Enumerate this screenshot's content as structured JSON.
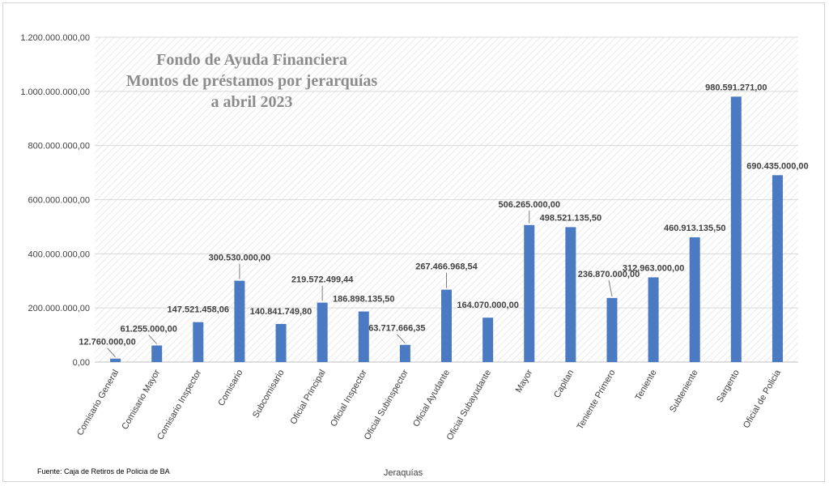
{
  "chart_data": {
    "type": "bar",
    "title_lines": [
      "Fondo de Ayuda Financiera",
      "Montos de préstamos por jerarquías",
      "a abril 2023"
    ],
    "xlabel": "Jeraquías",
    "ylabel": "",
    "ylim": [
      0,
      1200000000
    ],
    "ytick_values": [
      0,
      200000000,
      400000000,
      600000000,
      800000000,
      1000000000,
      1200000000
    ],
    "ytick_labels": [
      "0,00",
      "200.000.000,00",
      "400.000.000,00",
      "600.000.000,00",
      "800.000.000,00",
      "1.000.000.000,00",
      "1.200.000.000,00"
    ],
    "grid": true,
    "legend": "none",
    "bar_color": "#4a7bc2",
    "categories": [
      "Comisario General",
      "Comisario Mayor",
      "Comisario Inspector",
      "Comisario",
      "Subcomisario",
      "Oficial Principal",
      "Oficial Inspector",
      "Oficial Subinspector",
      "Oficial Ayudante",
      "Oficial Subayudante",
      "Mayor",
      "Capitan",
      "Teniente Primero",
      "Teniente",
      "Subteniente",
      "Sargento",
      "Oficial de Policia"
    ],
    "values": [
      12760000,
      61255000,
      147521458.06,
      300530000,
      140841749.8,
      219572499.44,
      186898135.5,
      63717666.35,
      267466968.54,
      164070000,
      506265000,
      498521135.5,
      236870000,
      312963000,
      460913135.5,
      980591271,
      690435000
    ],
    "data_labels": [
      "12.760.000,00",
      "61.255.000,00",
      "147.521.458,06",
      "300.530.000,00",
      "140.841.749,80",
      "219.572.499,44",
      "186.898.135,50",
      "63.717.666,35",
      "267.466.968,54",
      "164.070.000,00",
      "506.265.000,00",
      "498.521.135,50",
      "236.870.000,00",
      "312.963.000,00",
      "460.913.135,50",
      "980.591.271,00",
      "690.435.000,00"
    ]
  },
  "footer": {
    "source": "Fuente: Caja de Retiros de Policia de BA"
  }
}
